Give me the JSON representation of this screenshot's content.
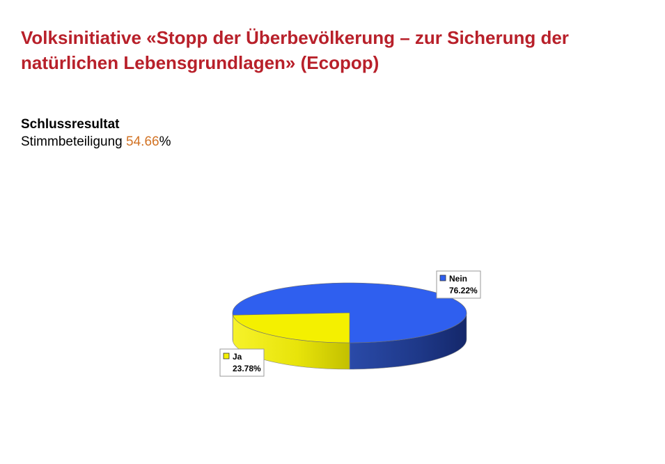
{
  "title": {
    "line1": "Volksinitiative «Stopp der Überbevölkerung – zur Sicherung der",
    "line2": "natürlichen Lebensgrundlagen» (Ecopop)"
  },
  "summary": {
    "heading": "Schlussresultat",
    "turnout_label": "Stimmbeteiligung ",
    "turnout_value": "54.66",
    "turnout_unit": "%"
  },
  "colors": {
    "title": "#b8202a",
    "turnout_value": "#d27325",
    "nein": "#2f5fef",
    "ja": "#f4f000"
  },
  "chart_data": {
    "type": "pie",
    "style": "3d",
    "slices": [
      {
        "label": "Nein",
        "value": 76.22,
        "value_text": "76.22%",
        "color": "#2f5fef"
      },
      {
        "label": "Ja",
        "value": 23.78,
        "value_text": "23.78%",
        "color": "#f4f000"
      }
    ]
  }
}
